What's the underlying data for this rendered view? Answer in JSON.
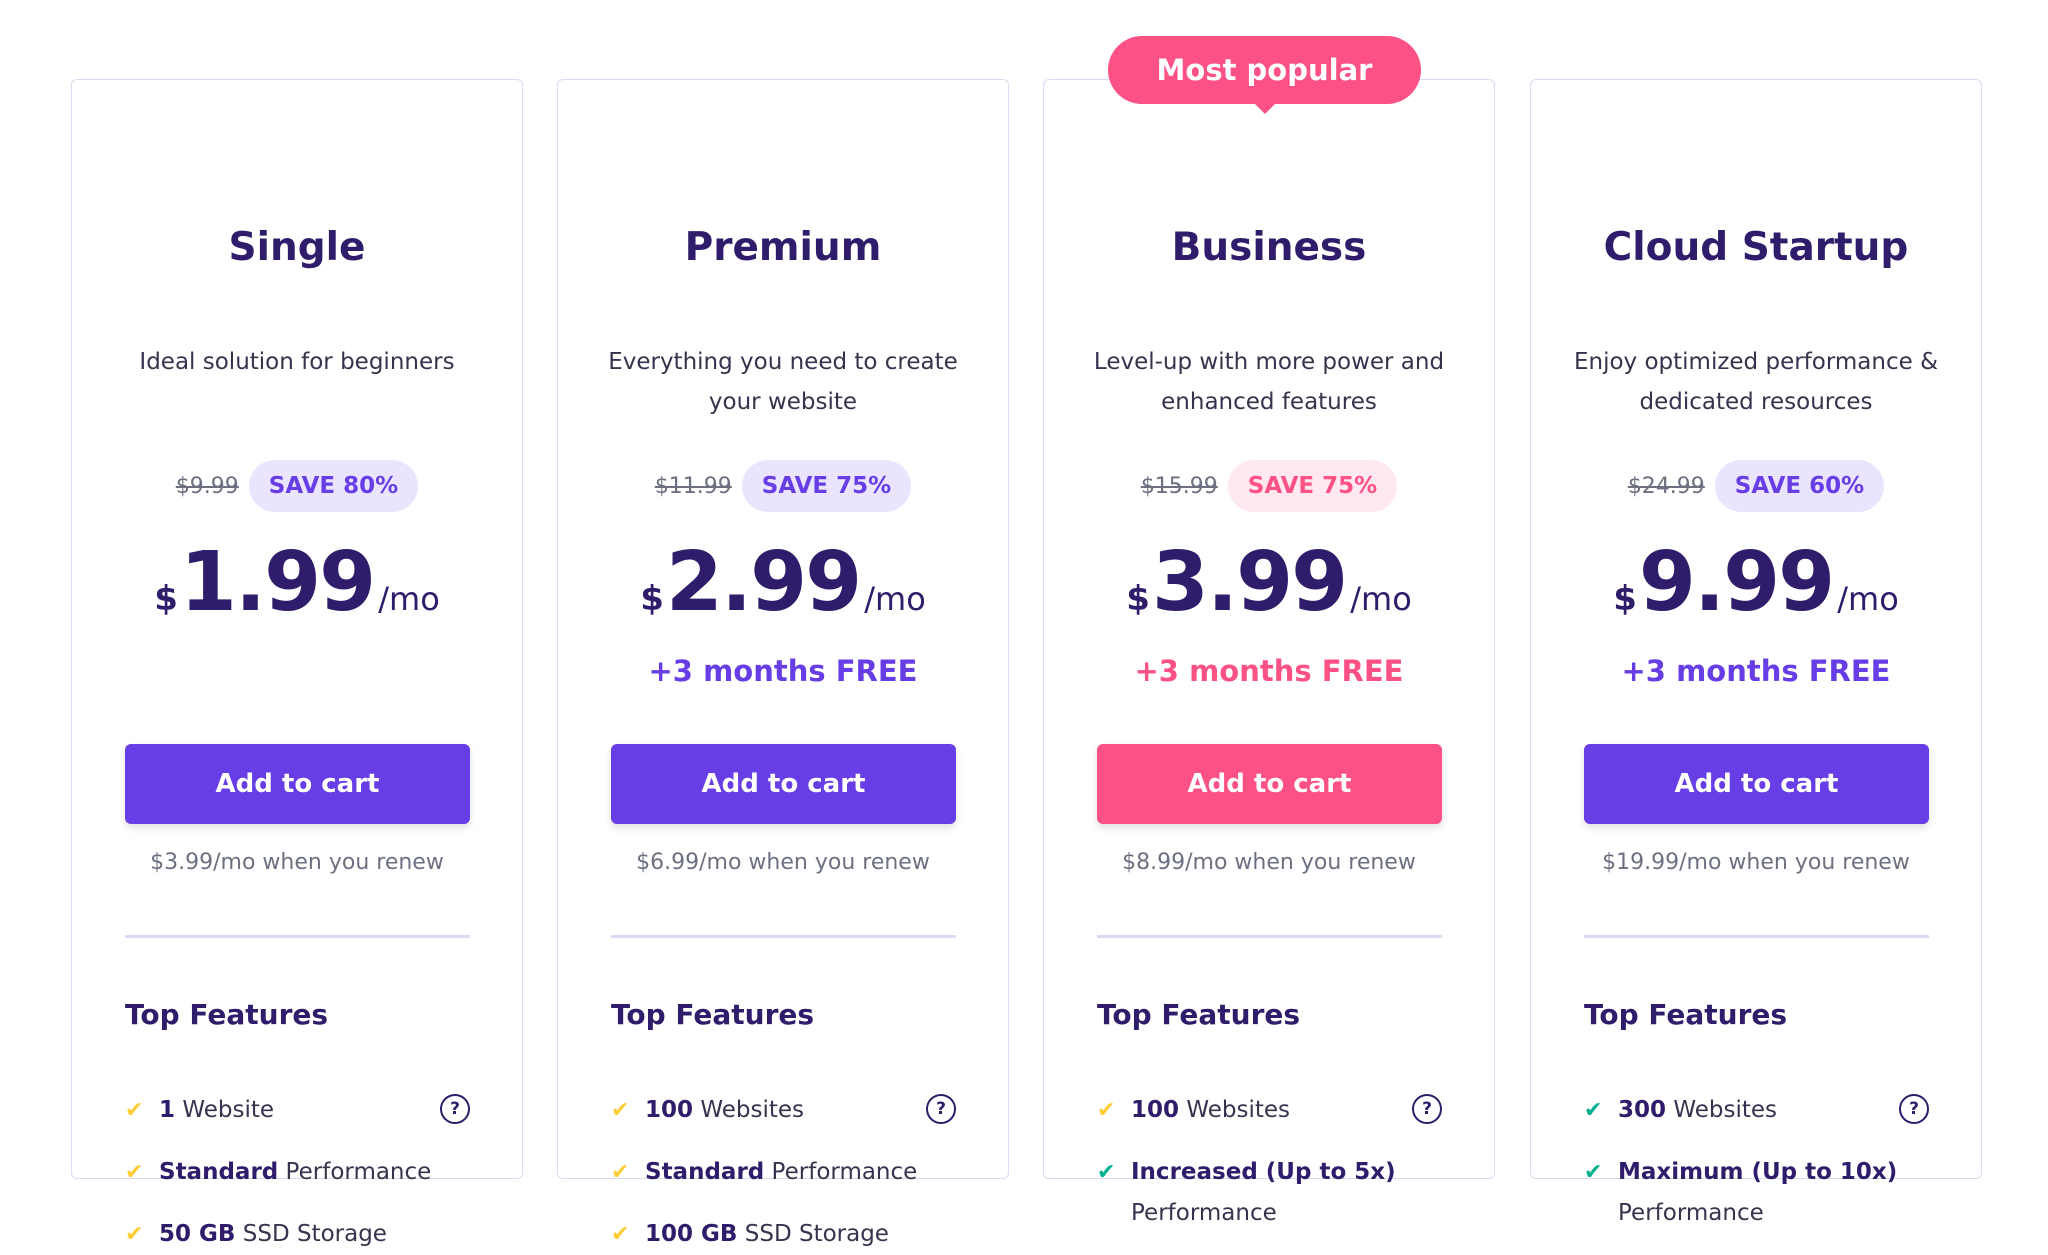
{
  "popular_badge": "Most popular",
  "plans": [
    {
      "title": "Single",
      "desc": "Ideal solution for beginners",
      "old_price": "$9.99",
      "save": "SAVE 80%",
      "currency": "$",
      "amount": "1.99",
      "per": "/mo",
      "free": "",
      "button": "Add to cart",
      "renew": "$3.99/mo when you renew",
      "features_title": "Top Features",
      "features": [
        {
          "bold": "1",
          "text": " Website",
          "cont": ""
        },
        {
          "bold": "Standard",
          "text": " Performance",
          "cont": ""
        },
        {
          "bold": "50 GB",
          "text": " SSD Storage",
          "cont": ""
        }
      ]
    },
    {
      "title": "Premium",
      "desc": "Everything you need to create your website",
      "old_price": "$11.99",
      "save": "SAVE 75%",
      "currency": "$",
      "amount": "2.99",
      "per": "/mo",
      "free": "+3 months FREE",
      "button": "Add to cart",
      "renew": "$6.99/mo when you renew",
      "features_title": "Top Features",
      "features": [
        {
          "bold": "100",
          "text": " Websites",
          "cont": ""
        },
        {
          "bold": "Standard",
          "text": " Performance",
          "cont": ""
        },
        {
          "bold": "100 GB",
          "text": " SSD Storage",
          "cont": ""
        }
      ]
    },
    {
      "title": "Business",
      "desc": "Level-up with more power and enhanced features",
      "old_price": "$15.99",
      "save": "SAVE 75%",
      "currency": "$",
      "amount": "3.99",
      "per": "/mo",
      "free": "+3 months FREE",
      "button": "Add to cart",
      "renew": "$8.99/mo when you renew",
      "features_title": "Top Features",
      "features": [
        {
          "bold": "100",
          "text": " Websites",
          "cont": ""
        },
        {
          "bold": "Increased (Up to 5x)",
          "text": "",
          "cont": "Performance"
        }
      ]
    },
    {
      "title": "Cloud Startup",
      "desc": "Enjoy optimized performance & dedicated resources",
      "old_price": "$24.99",
      "save": "SAVE 60%",
      "currency": "$",
      "amount": "9.99",
      "per": "/mo",
      "free": "+3 months FREE",
      "button": "Add to cart",
      "renew": "$19.99/mo when you renew",
      "features_title": "Top Features",
      "features": [
        {
          "bold": "300",
          "text": " Websites",
          "cont": ""
        },
        {
          "bold": "Maximum (Up to 10x)",
          "text": "",
          "cont": "Performance"
        }
      ]
    }
  ],
  "icons": {
    "check": "check-icon",
    "help": "question-circle-icon"
  },
  "colors": {
    "purple": "#673de6",
    "pink": "#fc5185",
    "dark": "#2f1c6a",
    "yellow_check": "#ffcd35",
    "green_check": "#00b090"
  }
}
